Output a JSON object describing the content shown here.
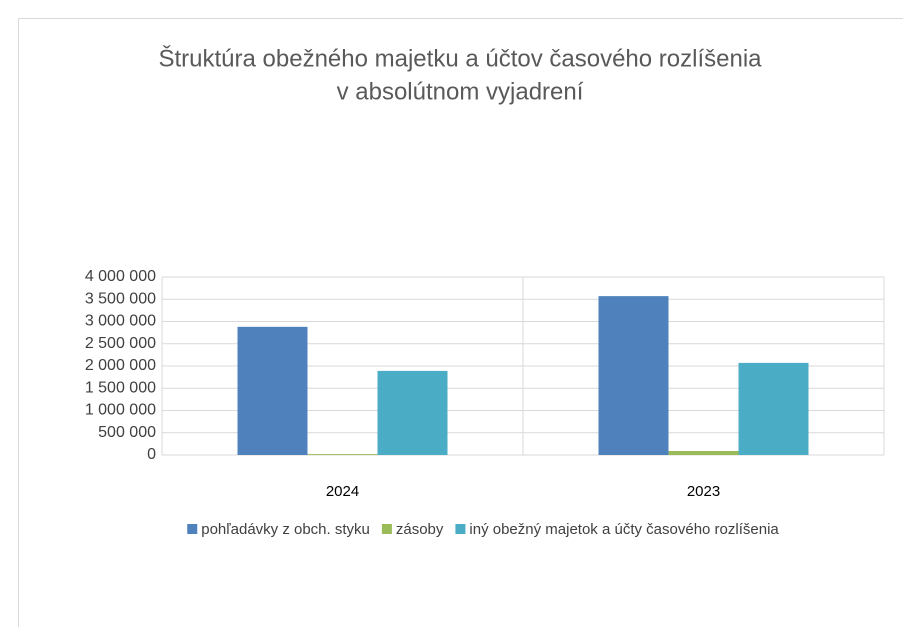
{
  "chart_data": {
    "type": "bar",
    "title": [
      "Štruktúra obežného majetku a účtov časového rozlíšenia",
      "v absolútnom vyjadrení"
    ],
    "categories": [
      "2024",
      "2023"
    ],
    "series": [
      {
        "name": "pohľadávky z obch. styku",
        "color": "#4f81bd",
        "values": [
          2880000,
          3570000
        ]
      },
      {
        "name": "zásoby",
        "color": "#9bbb59",
        "values": [
          20000,
          90000
        ]
      },
      {
        "name": "iný obežný majetok a účty časového rozlíšenia",
        "color": "#4bacc6",
        "values": [
          1890000,
          2070000
        ]
      }
    ],
    "ylim": [
      0,
      4000000
    ],
    "yticks": [
      0,
      {
        "value": 500000,
        "label": "500 000"
      },
      {
        "value": 1000000,
        "label": "1 000 000"
      },
      {
        "value": 1500000,
        "label": "1 500 000"
      },
      {
        "value": 2000000,
        "label": "2 000 000"
      },
      {
        "value": 2500000,
        "label": "2 500 000"
      },
      {
        "value": 3000000,
        "label": "3 000 000"
      },
      {
        "value": 3500000,
        "label": "3 500 000"
      },
      {
        "value": 4000000,
        "label": "4 000 000"
      }
    ],
    "grid": true,
    "legend": "bottom"
  }
}
